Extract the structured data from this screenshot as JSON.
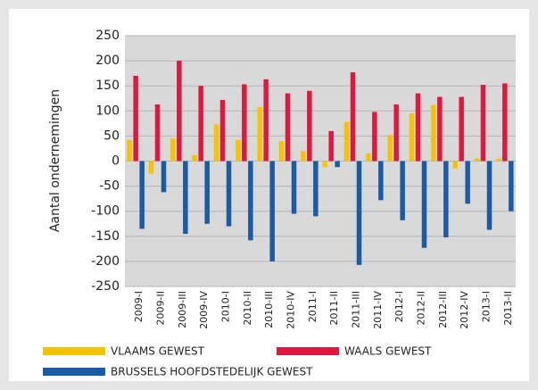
{
  "chart_data": {
    "type": "bar",
    "y_label": "Aantal ondernemingen",
    "categories": [
      "2009-I",
      "2009-II",
      "2009-III",
      "2009-IV",
      "2010-I",
      "2010-II",
      "2010-III",
      "2010-IV",
      "2011-I",
      "2011-II",
      "2011-III",
      "2011-IV",
      "2012-I",
      "2012-II",
      "2012-III",
      "2012-IV",
      "2013-I",
      "2013-II"
    ],
    "series": [
      {
        "name": "VLAAMS GEWEST",
        "color": "#f5c400",
        "values": [
          42,
          -25,
          45,
          12,
          73,
          42,
          108,
          40,
          20,
          -12,
          78,
          15,
          52,
          95,
          112,
          -15,
          5,
          5
        ]
      },
      {
        "name": "WAALS GEWEST",
        "color": "#e2173f",
        "values": [
          170,
          113,
          200,
          150,
          122,
          153,
          163,
          135,
          140,
          60,
          177,
          98,
          113,
          135,
          128,
          128,
          152,
          155
        ]
      },
      {
        "name": "BRUSSELS HOOFDSTEDELIJK GEWEST",
        "color": "#1a5ba6",
        "values": [
          -135,
          -62,
          -145,
          -125,
          -130,
          -158,
          -200,
          -105,
          -110,
          -12,
          -207,
          -78,
          -118,
          -173,
          -152,
          -85,
          -137,
          -100
        ]
      }
    ],
    "ylim": [
      -250,
      250
    ],
    "yticks": [
      -250,
      -200,
      -150,
      -100,
      -50,
      0,
      50,
      100,
      150,
      200,
      250
    ],
    "grid": true
  }
}
